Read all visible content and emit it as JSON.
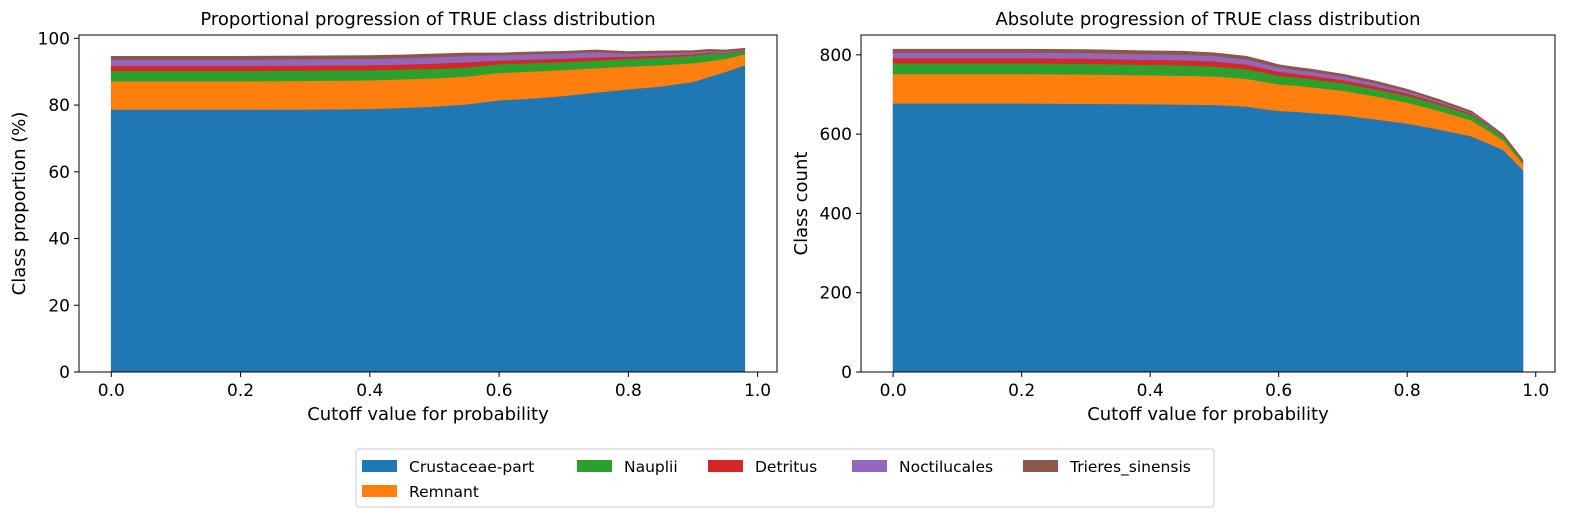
{
  "colors": {
    "Crustaceae-part": "#1f77b4",
    "Remnant": "#ff7f0e",
    "Nauplii": "#2ca02c",
    "Detritus": "#d62728",
    "Noctilucales": "#9467bd",
    "Trieres_sinensis": "#8c564b"
  },
  "legend": {
    "entries": [
      "Crustaceae-part",
      "Nauplii",
      "Detritus",
      "Noctilucales",
      "Trieres_sinensis",
      "Remnant"
    ]
  },
  "chart_data": [
    {
      "type": "area",
      "stacked": true,
      "title": "Proportional progression of TRUE class distribution",
      "xlabel": "Cutoff value for probability",
      "ylabel": "Class proportion (%)",
      "xlim": [
        -0.05,
        1.03
      ],
      "ylim": [
        0,
        101
      ],
      "xticks": [
        0.0,
        0.2,
        0.4,
        0.6,
        0.8,
        1.0
      ],
      "xtick_labels": [
        "0.0",
        "0.2",
        "0.4",
        "0.6",
        "0.8",
        "1.0"
      ],
      "yticks": [
        0,
        20,
        40,
        60,
        80,
        100
      ],
      "ytick_labels": [
        "0",
        "20",
        "40",
        "60",
        "80",
        "100"
      ],
      "x": [
        0.0,
        0.1,
        0.2,
        0.3,
        0.4,
        0.45,
        0.5,
        0.55,
        0.6,
        0.65,
        0.7,
        0.75,
        0.8,
        0.85,
        0.9,
        0.925,
        0.95,
        0.98
      ],
      "series": [
        {
          "name": "Crustaceae-part",
          "values": [
            78.7,
            78.7,
            78.7,
            78.7,
            78.9,
            79.2,
            79.6,
            80.3,
            81.5,
            82.0,
            82.8,
            83.8,
            84.8,
            85.6,
            87.0,
            88.5,
            90.0,
            92.0
          ]
        },
        {
          "name": "Remnant",
          "values": [
            8.5,
            8.5,
            8.5,
            8.6,
            8.6,
            8.6,
            8.5,
            8.3,
            8.2,
            8.1,
            7.8,
            7.3,
            6.8,
            6.4,
            5.6,
            4.7,
            3.9,
            3.2
          ]
        },
        {
          "name": "Nauplii",
          "values": [
            3.1,
            3.1,
            3.1,
            3.1,
            3.0,
            2.9,
            2.8,
            2.7,
            2.6,
            2.5,
            2.3,
            2.3,
            2.3,
            2.3,
            2.3,
            2.3,
            1.6,
            1.0
          ]
        },
        {
          "name": "Detritus",
          "values": [
            1.5,
            1.5,
            1.5,
            1.5,
            1.5,
            1.5,
            1.6,
            1.6,
            1.1,
            1.1,
            1.1,
            1.0,
            0.7,
            0.6,
            0.4,
            0.3,
            0.2,
            0.2
          ]
        },
        {
          "name": "Noctilucales",
          "values": [
            1.9,
            1.9,
            1.9,
            1.9,
            1.9,
            1.9,
            1.9,
            1.9,
            1.6,
            1.6,
            1.5,
            1.5,
            0.9,
            0.8,
            0.5,
            0.4,
            0.3,
            0.2
          ]
        },
        {
          "name": "Trieres_sinensis",
          "values": [
            0.9,
            0.9,
            0.9,
            0.9,
            0.9,
            0.9,
            0.9,
            0.8,
            0.6,
            0.6,
            0.6,
            0.6,
            0.5,
            0.5,
            0.5,
            0.5,
            0.5,
            0.4
          ]
        }
      ]
    },
    {
      "type": "area",
      "stacked": true,
      "title": "Absolute progression of TRUE class distribution",
      "xlabel": "Cutoff value for probability",
      "ylabel": "Class count",
      "xlim": [
        -0.05,
        1.03
      ],
      "ylim": [
        0,
        850
      ],
      "xticks": [
        0.0,
        0.2,
        0.4,
        0.6,
        0.8,
        1.0
      ],
      "xtick_labels": [
        "0.0",
        "0.2",
        "0.4",
        "0.6",
        "0.8",
        "1.0"
      ],
      "yticks": [
        0,
        200,
        400,
        600,
        800
      ],
      "ytick_labels": [
        "0",
        "200",
        "400",
        "600",
        "800"
      ],
      "x": [
        0.0,
        0.1,
        0.2,
        0.3,
        0.4,
        0.45,
        0.5,
        0.55,
        0.575,
        0.6,
        0.625,
        0.65,
        0.7,
        0.75,
        0.8,
        0.85,
        0.9,
        0.925,
        0.95,
        0.98
      ],
      "series": [
        {
          "name": "Crustaceae-part",
          "values": [
            678,
            678,
            678,
            677,
            676,
            675,
            674,
            670,
            664,
            659,
            657,
            654,
            648,
            638,
            627,
            612,
            595,
            578,
            560,
            510
          ]
        },
        {
          "name": "Remnant",
          "values": [
            74,
            74,
            74,
            74,
            73,
            73,
            72,
            70,
            69,
            67,
            66,
            65,
            62,
            58,
            53,
            47,
            40,
            32,
            24,
            16
          ]
        },
        {
          "name": "Nauplii",
          "values": [
            27,
            27,
            27,
            27,
            26,
            26,
            25,
            24,
            23,
            22,
            21,
            20,
            19,
            18,
            17,
            16,
            14,
            12,
            9,
            5
          ]
        },
        {
          "name": "Detritus",
          "values": [
            13,
            13,
            13,
            13,
            13,
            13,
            13,
            12,
            11,
            10,
            9,
            9,
            8,
            7,
            6,
            4,
            3,
            2,
            1,
            1
          ]
        },
        {
          "name": "Noctilucales",
          "values": [
            14,
            14,
            14,
            14,
            14,
            14,
            14,
            13,
            12,
            11,
            10,
            10,
            9,
            8,
            6,
            4,
            3,
            2,
            1,
            1
          ]
        },
        {
          "name": "Trieres_sinensis",
          "values": [
            8,
            8,
            8,
            8,
            8,
            8,
            7,
            7,
            7,
            6,
            6,
            6,
            5,
            5,
            4,
            4,
            3,
            3,
            3,
            2
          ]
        }
      ]
    }
  ]
}
